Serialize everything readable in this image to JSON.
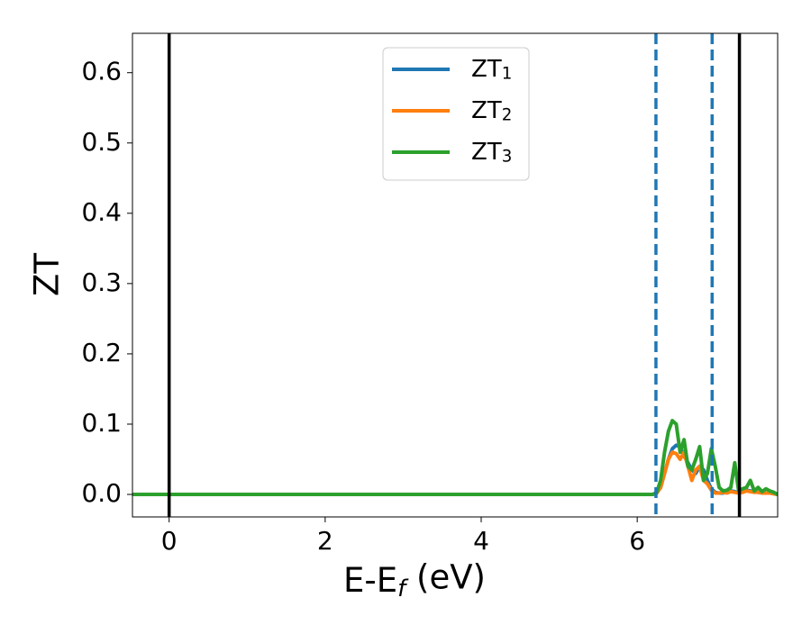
{
  "chart_data": {
    "type": "line",
    "xlabel": "E-Ef (eV)",
    "ylabel": "ZT",
    "x": [
      -0.47,
      6.2,
      6.25,
      6.3,
      6.35,
      6.4,
      6.45,
      6.5,
      6.55,
      6.6,
      6.65,
      6.7,
      6.75,
      6.8,
      6.85,
      6.9,
      6.95,
      7.0,
      7.05,
      7.1,
      7.15,
      7.2,
      7.25,
      7.3,
      7.35,
      7.4,
      7.45,
      7.5,
      7.55,
      7.6,
      7.65,
      7.7,
      7.75,
      7.8
    ],
    "series": [
      {
        "name": "ZT1",
        "color": "#1f77b4",
        "values": [
          0,
          0,
          0.002,
          0.01,
          0.03,
          0.05,
          0.065,
          0.07,
          0.068,
          0.055,
          0.045,
          0.035,
          0.03,
          0.04,
          0.035,
          0.02,
          0.008,
          0.003,
          0.002,
          0.002,
          0.003,
          0.005,
          0.004,
          0.002,
          0.004,
          0.006,
          0.005,
          0.004,
          0.003,
          0.002,
          0.002,
          0.002,
          0.001,
          0
        ]
      },
      {
        "name": "ZT2",
        "color": "#ff7f0e",
        "values": [
          0,
          0,
          0.002,
          0.01,
          0.03,
          0.05,
          0.06,
          0.058,
          0.05,
          0.06,
          0.04,
          0.02,
          0.035,
          0.04,
          0.02,
          0.015,
          0.006,
          0.002,
          0.002,
          0.003,
          0.002,
          0.004,
          0.003,
          0.002,
          0.003,
          0.005,
          0.004,
          0.003,
          0.003,
          0.002,
          0.002,
          0.002,
          0.001,
          0
        ]
      },
      {
        "name": "ZT3",
        "color": "#2ca02c",
        "values": [
          0,
          0,
          0.003,
          0.02,
          0.06,
          0.09,
          0.105,
          0.1,
          0.06,
          0.078,
          0.04,
          0.035,
          0.05,
          0.068,
          0.02,
          0.03,
          0.065,
          0.04,
          0.01,
          0.005,
          0.006,
          0.01,
          0.045,
          0.005,
          0.008,
          0.01,
          0.02,
          0.005,
          0.01,
          0.004,
          0.008,
          0.005,
          0.003,
          0
        ]
      }
    ],
    "vlines": [
      {
        "x": 0,
        "color": "#000000",
        "dashed": false
      },
      {
        "x": 7.31,
        "color": "#000000",
        "dashed": false
      },
      {
        "x": 6.24,
        "color": "#1f77b4",
        "dashed": true
      },
      {
        "x": 6.96,
        "color": "#1f77b4",
        "dashed": true
      }
    ],
    "xlim": [
      -0.47,
      7.8
    ],
    "ylim": [
      -0.032,
      0.656
    ],
    "xticks": [
      0,
      2,
      4,
      6
    ],
    "yticks": [
      {
        "value": 0,
        "label": "0.0"
      },
      0.1,
      0.2,
      0.3,
      0.4,
      0.5,
      0.6
    ],
    "legend": "upper center"
  }
}
